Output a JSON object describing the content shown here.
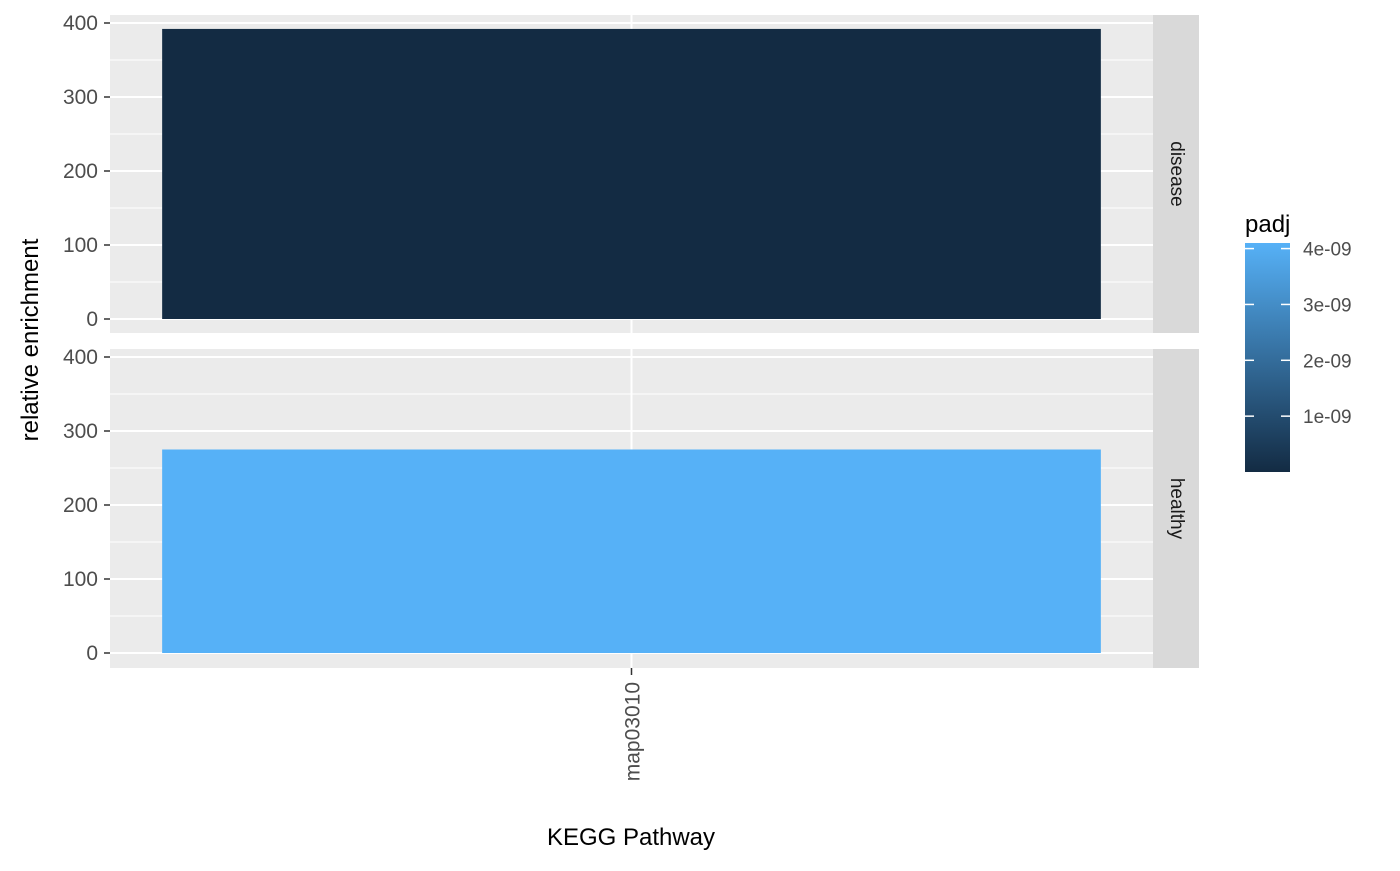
{
  "chart_data": {
    "type": "bar",
    "facet_by": "row",
    "categories": [
      "map03010"
    ],
    "xlabel": "KEGG Pathway",
    "ylabel": "relative enrichment",
    "ylim": [
      0,
      410
    ],
    "yticks": [
      0,
      100,
      200,
      300,
      400
    ],
    "grid": true,
    "x_tick_rotation": "vertical",
    "panels": [
      {
        "strip": "disease",
        "values": [
          392
        ],
        "padj": 0
      },
      {
        "strip": "healthy",
        "values": [
          275
        ],
        "padj": 4.1e-09
      }
    ],
    "colorbar": {
      "title": "padj",
      "min": 0,
      "max": 4.1e-09,
      "low_color": "#132B43",
      "high_color": "#56B1F7",
      "ticks": [
        {
          "value": 1e-09,
          "label": "1e-09"
        },
        {
          "value": 2e-09,
          "label": "2e-09"
        },
        {
          "value": 3e-09,
          "label": "3e-09"
        },
        {
          "value": 4e-09,
          "label": "4e-09"
        }
      ],
      "position": "right"
    },
    "colors": {
      "panel_background": "#EBEBEB",
      "grid": "#FFFFFF",
      "strip_background": "#D9D9D9"
    }
  }
}
